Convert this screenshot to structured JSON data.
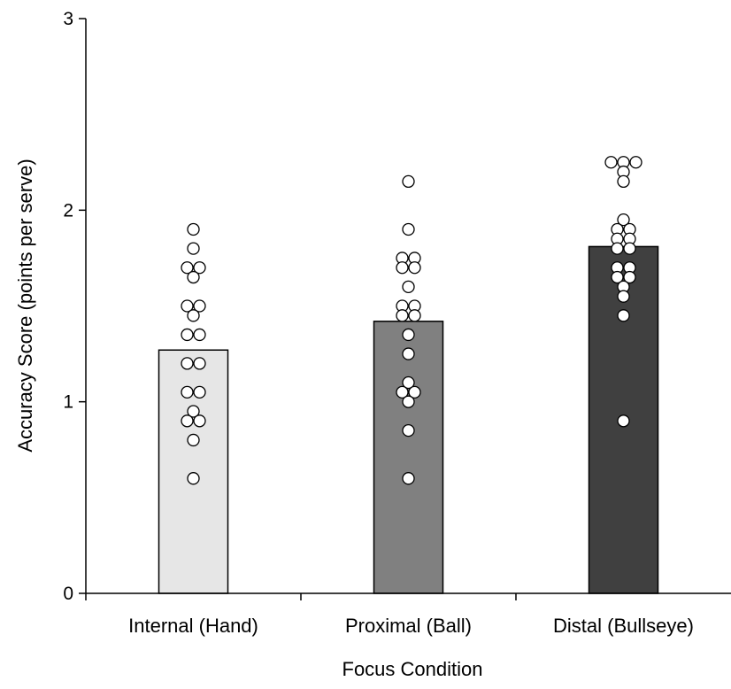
{
  "chart_data": {
    "type": "bar",
    "title": "",
    "xlabel": "Focus Condition",
    "ylabel": "Accuracy Score (points per serve)",
    "ylim": [
      0,
      3
    ],
    "yticks": [
      "0",
      "1",
      "2",
      "3"
    ],
    "grid": false,
    "legend": "none",
    "categories": [
      "Internal (Hand)",
      "Proximal (Ball)",
      "Distal (Bullseye)"
    ],
    "values": [
      1.27,
      1.42,
      1.81
    ],
    "colors": [
      "#e6e6e6",
      "#808080",
      "#404040"
    ],
    "points": [
      [
        1.9,
        1.8,
        1.7,
        1.7,
        1.65,
        1.5,
        1.5,
        1.45,
        1.35,
        1.35,
        1.2,
        1.2,
        1.05,
        1.05,
        0.95,
        0.9,
        0.9,
        0.8,
        0.6
      ],
      [
        2.15,
        1.9,
        1.75,
        1.75,
        1.7,
        1.7,
        1.6,
        1.5,
        1.5,
        1.45,
        1.45,
        1.35,
        1.25,
        1.1,
        1.05,
        1.05,
        1.0,
        0.85,
        0.6
      ],
      [
        2.25,
        2.25,
        2.25,
        2.2,
        2.15,
        1.95,
        1.9,
        1.9,
        1.85,
        1.85,
        1.8,
        1.8,
        1.7,
        1.7,
        1.65,
        1.65,
        1.6,
        1.55,
        1.45,
        0.9
      ]
    ]
  }
}
